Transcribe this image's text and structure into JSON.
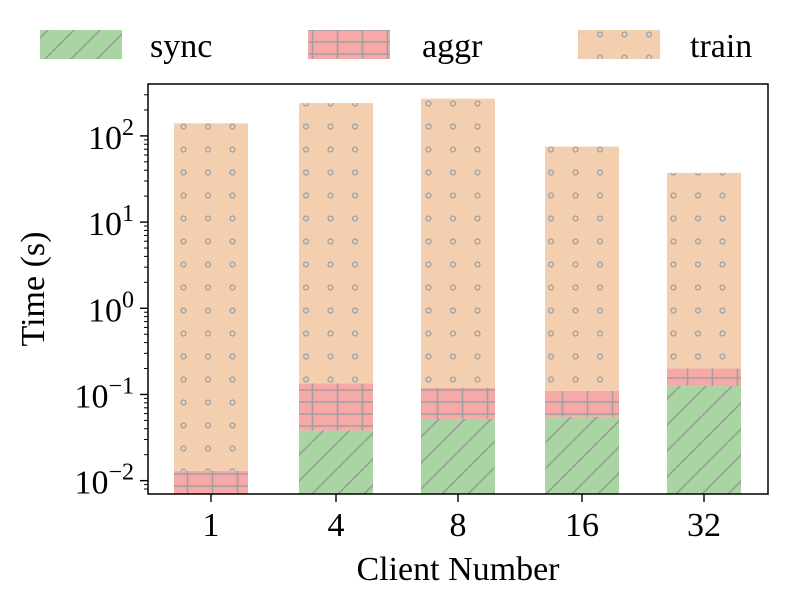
{
  "chart_data": {
    "type": "bar",
    "stacked": true,
    "title": "",
    "xlabel": "Client Number",
    "ylabel": "Time (s)",
    "yscale": "log",
    "ylim": [
      0.007,
      400
    ],
    "categories": [
      "1",
      "4",
      "8",
      "16",
      "32"
    ],
    "series": [
      {
        "name": "sync",
        "color": "#a8d5a2",
        "hatch": "diagonal",
        "values": [
          0,
          0.038,
          0.052,
          0.055,
          0.125
        ]
      },
      {
        "name": "aggr",
        "color": "#f7a9a8",
        "hatch": "grid",
        "values": [
          0.013,
          0.097,
          0.068,
          0.055,
          0.075
        ]
      },
      {
        "name": "train",
        "color": "#f3cfb0",
        "hatch": "dots",
        "values": [
          140,
          240,
          270,
          75,
          37
        ]
      }
    ],
    "yticks": [
      {
        "value": 0.01,
        "base": "10",
        "exp": "−2"
      },
      {
        "value": 0.1,
        "base": "10",
        "exp": "−1"
      },
      {
        "value": 1,
        "base": "10",
        "exp": "0"
      },
      {
        "value": 10,
        "base": "10",
        "exp": "1"
      },
      {
        "value": 100,
        "base": "10",
        "exp": "2"
      }
    ],
    "legend": {
      "position": "top",
      "columns": 3
    },
    "grid": false
  }
}
